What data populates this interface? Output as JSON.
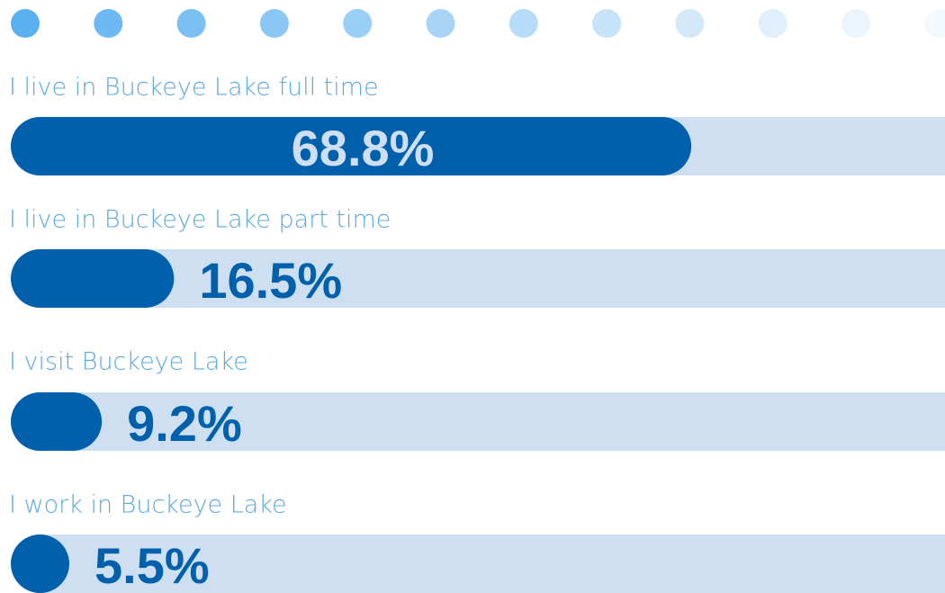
{
  "chart_data": {
    "type": "bar",
    "orientation": "horizontal",
    "categories": [
      "I live in Buckeye Lake full time",
      "I live in Buckeye Lake part time",
      "I visit Buckeye Lake",
      "I work in Buckeye Lake"
    ],
    "values": [
      68.8,
      16.5,
      9.2,
      5.5
    ],
    "value_labels": [
      "68.8%",
      "16.5%",
      "9.2%",
      "5.5%"
    ],
    "xlim": [
      0,
      100
    ],
    "color": "#0060ac",
    "track_color": "#cddff0"
  }
}
